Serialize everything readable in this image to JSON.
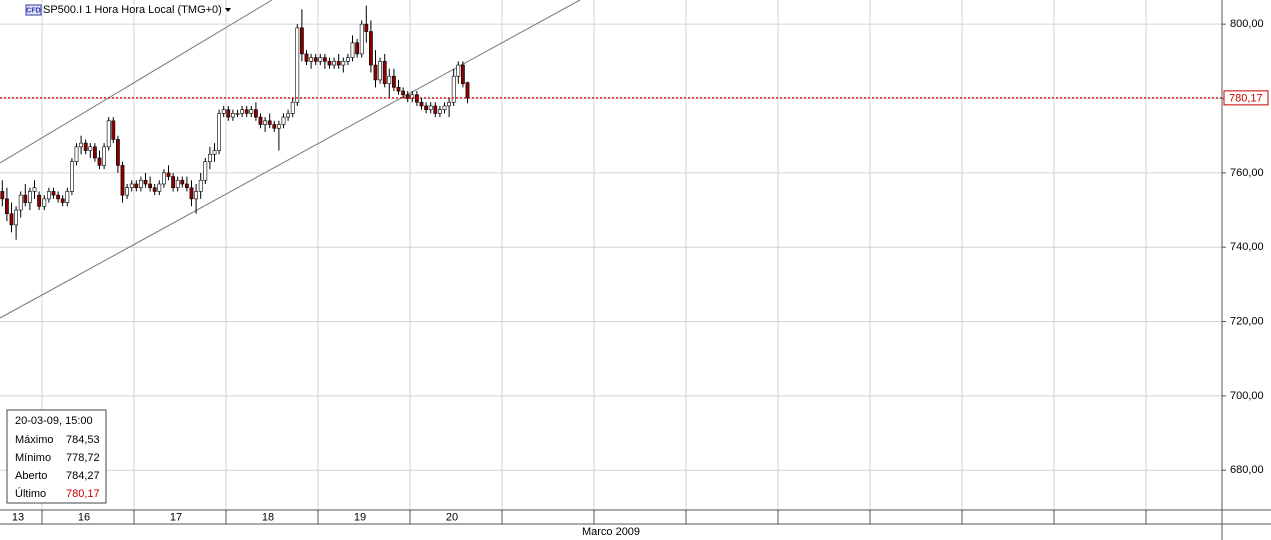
{
  "chart_data": {
    "type": "candlestick",
    "title": "SP500.I 1 Hora Hora Local (TMG+0)",
    "title_badge": "CFD",
    "month_label": "Marco 2009",
    "ylim": [
      669.3,
      806.5
    ],
    "yticks": [
      {
        "value": 680,
        "label": "680,00"
      },
      {
        "value": 700,
        "label": "700,00"
      },
      {
        "value": 720,
        "label": "720,00"
      },
      {
        "value": 740,
        "label": "740,00"
      },
      {
        "value": 760,
        "label": "760,00"
      },
      {
        "value": 780,
        "label": "780,00"
      },
      {
        "value": 800,
        "label": "800,00"
      }
    ],
    "grid": true,
    "up_color": "#ffffff",
    "down_color": "#8b0000",
    "last_price": {
      "value": 780.17,
      "label": "780,17"
    },
    "days": [
      {
        "label": "13",
        "candles": [
          [
            755,
            758,
            751,
            753
          ],
          [
            753,
            756,
            747,
            749
          ],
          [
            749,
            752,
            744,
            746
          ],
          [
            746,
            751,
            742,
            750
          ],
          [
            750,
            755,
            748,
            754
          ],
          [
            754,
            757,
            751,
            752
          ],
          [
            752,
            756,
            750,
            755
          ],
          [
            755,
            758,
            753,
            756
          ],
          [
            754,
            755,
            750,
            751
          ]
        ]
      },
      {
        "label": "16",
        "candles": [
          [
            751,
            754,
            750,
            753
          ],
          [
            753,
            756,
            752,
            755
          ],
          [
            755,
            756,
            753,
            754
          ],
          [
            754,
            755,
            752,
            753
          ],
          [
            753,
            754,
            751,
            752
          ],
          [
            752,
            756,
            751,
            755
          ],
          [
            755,
            764,
            754,
            763
          ],
          [
            763,
            768,
            762,
            767
          ],
          [
            767,
            770,
            765,
            768
          ],
          [
            768,
            769,
            765,
            766
          ],
          [
            766,
            768,
            764,
            767
          ],
          [
            767,
            768,
            763,
            764
          ],
          [
            764,
            766,
            761,
            762
          ],
          [
            762,
            768,
            761,
            767
          ],
          [
            767,
            775,
            766,
            774
          ],
          [
            774,
            775,
            768,
            769
          ],
          [
            769,
            770,
            760,
            762
          ],
          [
            762,
            763,
            752,
            754
          ],
          [
            754,
            757,
            753,
            756
          ],
          [
            756,
            758,
            755,
            757
          ]
        ]
      },
      {
        "label": "17",
        "candles": [
          [
            757,
            758,
            755,
            756
          ],
          [
            756,
            759,
            755,
            758
          ],
          [
            758,
            760,
            756,
            757
          ],
          [
            757,
            759,
            755,
            756
          ],
          [
            756,
            757,
            754,
            755
          ],
          [
            755,
            758,
            754,
            757
          ],
          [
            757,
            761,
            756,
            760
          ],
          [
            760,
            762,
            758,
            759
          ],
          [
            759,
            760,
            755,
            756
          ],
          [
            756,
            759,
            755,
            758
          ],
          [
            758,
            759,
            756,
            757
          ],
          [
            757,
            759,
            755,
            756
          ],
          [
            756,
            758,
            751,
            753
          ],
          [
            753,
            757,
            749,
            755
          ],
          [
            755,
            760,
            753,
            758
          ],
          [
            758,
            764,
            757,
            763
          ],
          [
            763,
            767,
            761,
            765
          ],
          [
            765,
            768,
            763,
            766
          ],
          [
            766,
            777,
            765,
            776
          ],
          [
            776,
            778,
            775,
            777
          ]
        ]
      },
      {
        "label": "18",
        "candles": [
          [
            777,
            778,
            774,
            775
          ],
          [
            775,
            777,
            774,
            776
          ],
          [
            776,
            777,
            775,
            776
          ],
          [
            776,
            778,
            775,
            777
          ],
          [
            777,
            778,
            775,
            776
          ],
          [
            776,
            778,
            775,
            777
          ],
          [
            777,
            779,
            774,
            775
          ],
          [
            775,
            776,
            772,
            773
          ],
          [
            773,
            775,
            771,
            774
          ],
          [
            774,
            776,
            772,
            773
          ],
          [
            773,
            774,
            771,
            772
          ],
          [
            772,
            774,
            766,
            773
          ],
          [
            773,
            776,
            772,
            775
          ],
          [
            775,
            777,
            774,
            776
          ],
          [
            776,
            780,
            775,
            779
          ],
          [
            779,
            800,
            778,
            799
          ],
          [
            799,
            804,
            790,
            792
          ],
          [
            792,
            793,
            789,
            790
          ],
          [
            790,
            792,
            788,
            791
          ],
          [
            791,
            792,
            789,
            790
          ]
        ]
      },
      {
        "label": "19",
        "candles": [
          [
            790,
            792,
            789,
            791
          ],
          [
            791,
            792,
            788,
            790
          ],
          [
            790,
            791,
            788,
            789
          ],
          [
            789,
            791,
            788,
            790
          ],
          [
            790,
            792,
            788,
            789
          ],
          [
            789,
            791,
            787,
            790
          ],
          [
            790,
            792,
            789,
            791
          ],
          [
            791,
            797,
            790,
            795
          ],
          [
            795,
            796,
            791,
            792
          ],
          [
            792,
            801,
            791,
            800
          ],
          [
            800,
            805,
            795,
            798
          ],
          [
            798,
            801,
            787,
            789
          ],
          [
            789,
            793,
            783,
            785
          ],
          [
            785,
            791,
            784,
            790
          ],
          [
            790,
            792,
            783,
            784
          ],
          [
            784,
            788,
            780,
            786
          ],
          [
            786,
            788,
            782,
            783
          ],
          [
            783,
            785,
            781,
            782
          ],
          [
            782,
            783,
            780,
            781
          ],
          [
            781,
            782,
            779,
            780
          ]
        ]
      },
      {
        "label": "20",
        "candles": [
          [
            780,
            782,
            779,
            781
          ],
          [
            781,
            782,
            778,
            779
          ],
          [
            779,
            780,
            777,
            778
          ],
          [
            778,
            779,
            776,
            777
          ],
          [
            777,
            779,
            776,
            778
          ],
          [
            778,
            779,
            775,
            776
          ],
          [
            776,
            778,
            775,
            777
          ],
          [
            777,
            779,
            776,
            778
          ],
          [
            778,
            780,
            775,
            779
          ],
          [
            779,
            788,
            778,
            786
          ],
          [
            786,
            790,
            784,
            789
          ],
          [
            789,
            790,
            783,
            784
          ],
          [
            784.27,
            784.53,
            778.72,
            780.17
          ]
        ]
      }
    ]
  },
  "info_box": {
    "title": "20-03-09, 15:00",
    "rows": [
      {
        "label": "Máximo",
        "value": "784,53"
      },
      {
        "label": "Mínimo",
        "value": "778,72"
      },
      {
        "label": "Aberto",
        "value": "784,27"
      },
      {
        "label": "Último",
        "value": "780,17"
      }
    ]
  }
}
